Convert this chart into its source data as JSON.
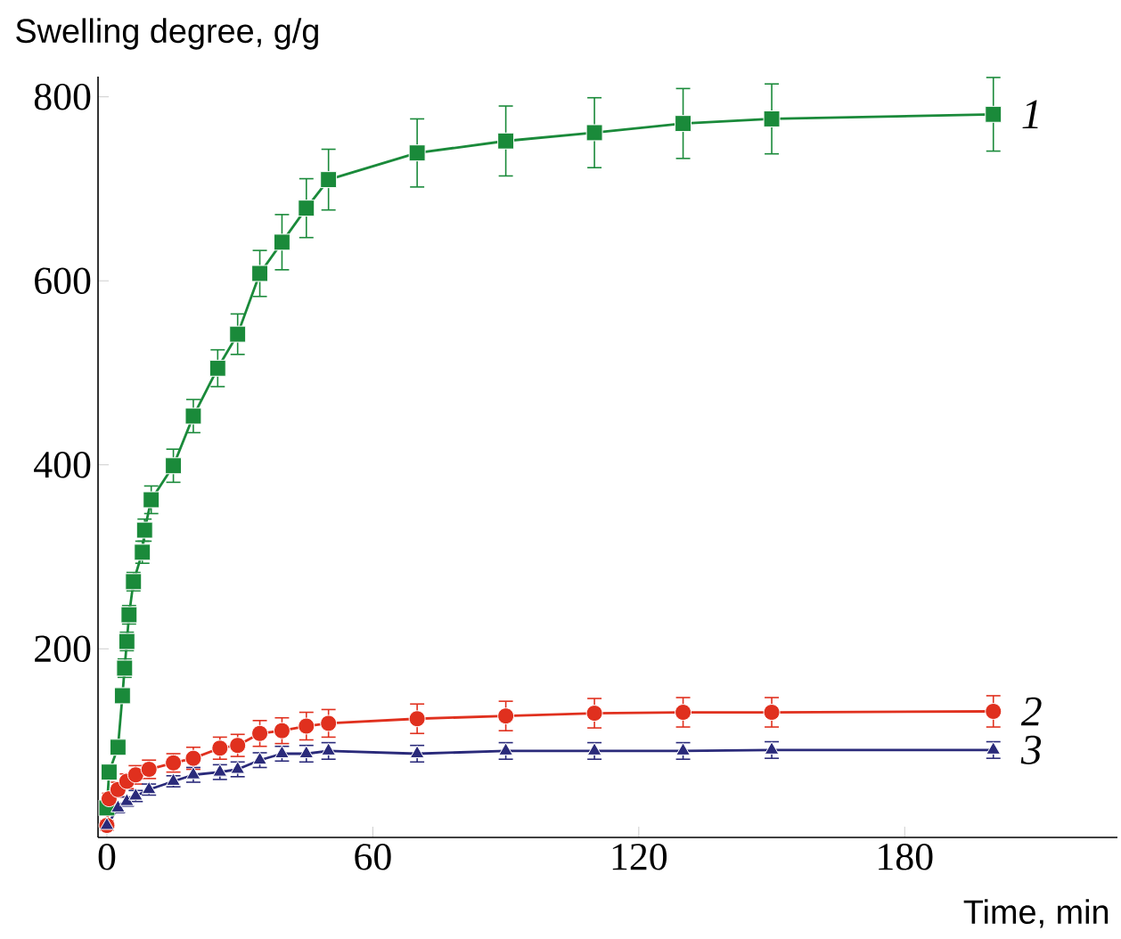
{
  "chart_data": {
    "type": "line",
    "ylabel": "Swelling degree, g/g",
    "xlabel": "Time, min",
    "xlim": [
      -2,
      228
    ],
    "ylim": [
      -5,
      822
    ],
    "xticks": [
      0,
      60,
      120,
      180
    ],
    "yticks": [
      200,
      400,
      600,
      800
    ],
    "grid": false,
    "line_style": "solid",
    "series": [
      {
        "name": "1",
        "color": "#1a8a3a",
        "marker": "square",
        "x": [
          0,
          0.5,
          2.5,
          3.5,
          4,
          4.5,
          5,
          6,
          8,
          8.5,
          10,
          15,
          19.5,
          25,
          29.5,
          34.5,
          39.5,
          45,
          50,
          70,
          90,
          110,
          130,
          150,
          200
        ],
        "values": [
          27,
          66,
          93,
          149,
          179,
          208,
          237,
          273,
          305,
          329,
          362,
          399,
          453,
          505,
          542,
          608,
          642,
          679,
          710,
          739,
          752,
          761,
          771,
          776,
          781
        ],
        "errors": [
          5,
          5,
          8,
          8,
          10,
          10,
          10,
          10,
          12,
          12,
          15,
          18,
          18,
          20,
          22,
          25,
          30,
          32,
          33,
          37,
          38,
          38,
          38,
          38,
          40
        ]
      },
      {
        "name": "2",
        "color": "#e0301e",
        "marker": "circle",
        "x": [
          0,
          0.5,
          2.5,
          4.5,
          6.5,
          9.5,
          15,
          19.5,
          25.5,
          29.5,
          34.5,
          39.5,
          45,
          50,
          70,
          90,
          110,
          130,
          150,
          200
        ],
        "values": [
          8,
          37,
          47,
          56,
          63,
          69,
          76,
          81,
          92,
          95,
          108,
          111,
          116,
          119,
          124,
          127,
          130,
          131,
          131,
          132
        ],
        "errors": [
          5,
          6,
          8,
          8,
          10,
          10,
          10,
          12,
          12,
          12,
          14,
          14,
          15,
          15,
          16,
          16,
          16,
          16,
          16,
          17
        ]
      },
      {
        "name": "3",
        "color": "#2a2a7a",
        "marker": "triangle",
        "x": [
          0,
          2.5,
          4.5,
          6.5,
          9.5,
          15,
          19.5,
          25.5,
          29.5,
          34.5,
          39.5,
          45,
          50,
          70,
          90,
          110,
          130,
          150,
          200
        ],
        "values": [
          8,
          27,
          34,
          40,
          47,
          56,
          63,
          66,
          69,
          79,
          86,
          86,
          89,
          86,
          89,
          89,
          89,
          90,
          90
        ],
        "errors": [
          4,
          5,
          5,
          6,
          6,
          6,
          8,
          8,
          8,
          8,
          8,
          9,
          9,
          9,
          9,
          9,
          9,
          9,
          9
        ]
      }
    ]
  }
}
